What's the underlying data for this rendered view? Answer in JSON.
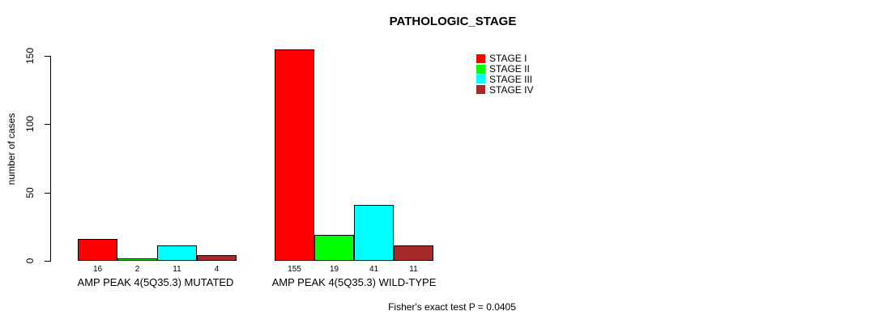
{
  "title": "PATHOLOGIC_STAGE",
  "ylabel": "number of cases",
  "footer": "Fisher's exact test P = 0.0405",
  "chart_data": {
    "type": "bar",
    "title": "PATHOLOGIC_STAGE",
    "xlabel": "",
    "ylabel": "number of cases",
    "ylim": [
      0,
      150
    ],
    "yticks": [
      0,
      50,
      100,
      150
    ],
    "grid": false,
    "legend_position": "top-right",
    "categories": [
      "AMP PEAK 4(5Q35.3) MUTATED",
      "AMP PEAK 4(5Q35.3) WILD-TYPE"
    ],
    "series": [
      {
        "name": "STAGE I",
        "color": "#FF0000",
        "values": [
          16,
          155
        ]
      },
      {
        "name": "STAGE II",
        "color": "#00FF00",
        "values": [
          2,
          19
        ]
      },
      {
        "name": "STAGE III",
        "color": "#00FFFF",
        "values": [
          11,
          41
        ]
      },
      {
        "name": "STAGE IV",
        "color": "#A52A2A",
        "values": [
          4,
          11
        ]
      }
    ],
    "bar_value_labels_shown": true,
    "annotation": "Fisher's exact test P = 0.0405"
  }
}
